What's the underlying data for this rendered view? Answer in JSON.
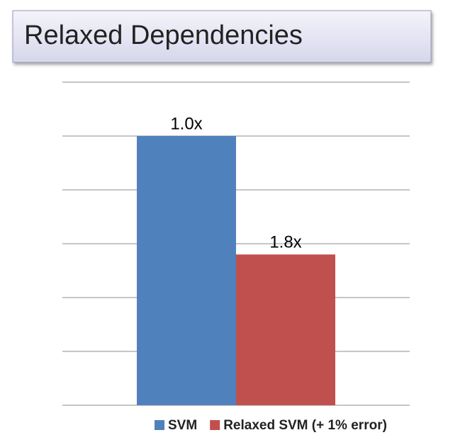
{
  "chart_data": {
    "type": "bar",
    "title": "Relaxed Dependencies",
    "categories": [
      null
    ],
    "series": [
      {
        "name": "SVM",
        "color": "#4f81bd",
        "values": [
          5
        ]
      },
      {
        "name": "Relaxed SVM (+ 1% error)",
        "color": "#c0504d",
        "values": [
          2.8
        ]
      }
    ],
    "annotations": [
      "1.0x",
      "1.8x"
    ],
    "ylim": [
      0,
      6
    ],
    "yticks": [
      0,
      1,
      2,
      3,
      4,
      5,
      6
    ],
    "grid": true,
    "legend": "bottom"
  }
}
